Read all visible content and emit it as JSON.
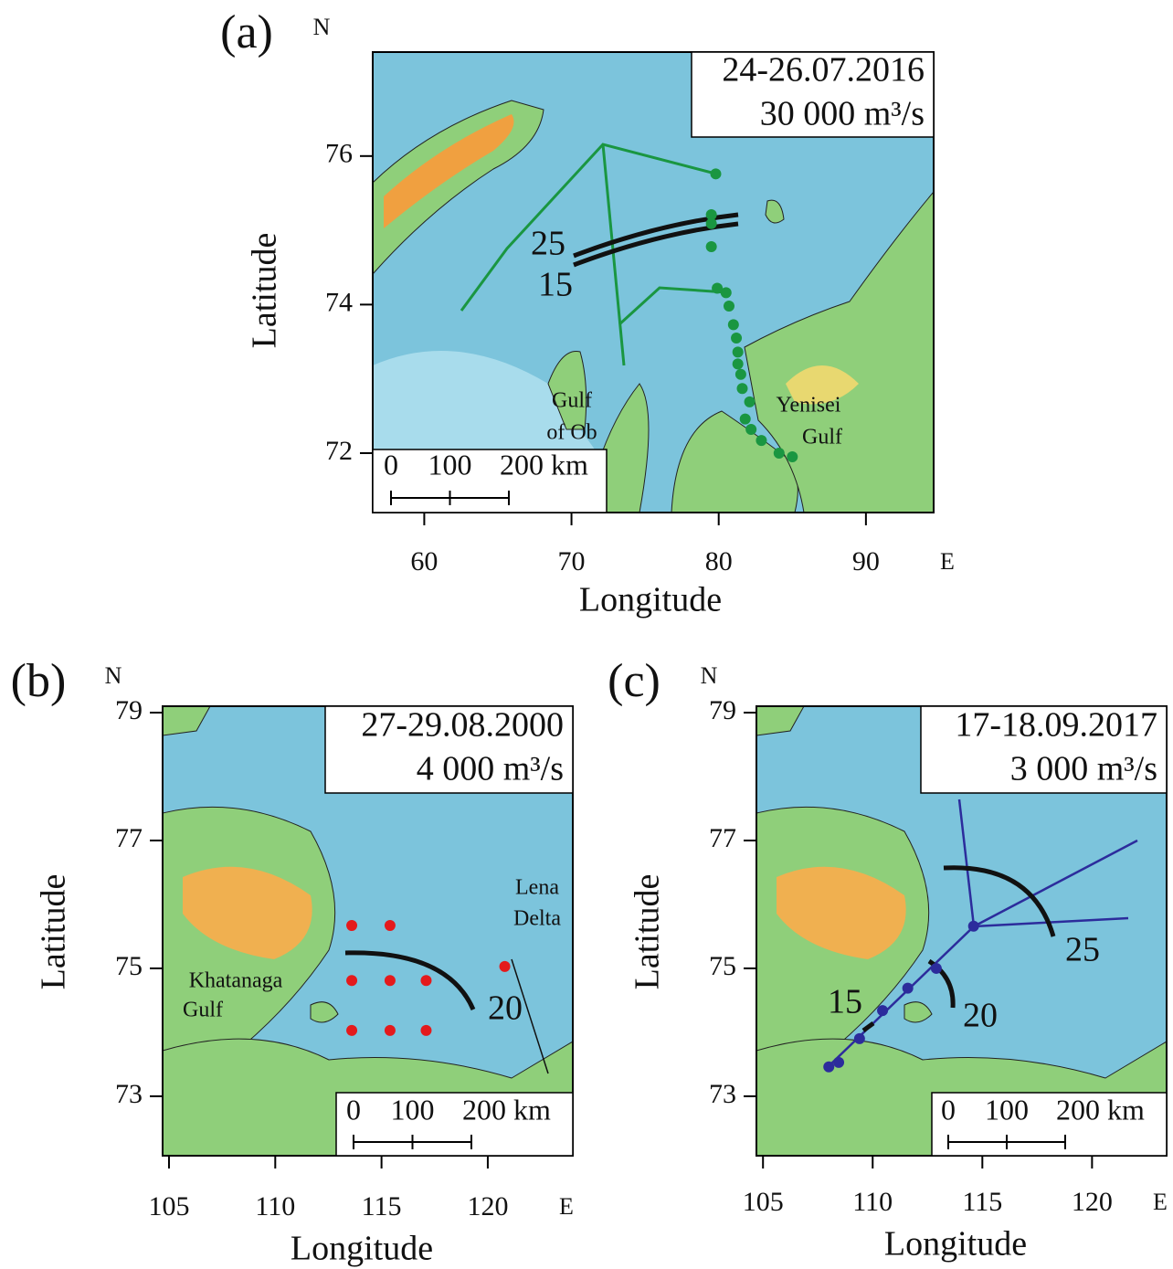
{
  "panels": [
    {
      "label": "(a)",
      "date": "24-26.07.2016",
      "discharge": "30 000 m³/s",
      "north": "N",
      "east": "E",
      "xlabel": "Longitude",
      "ylabel": "Latitude",
      "xlim": [
        56.5,
        94.6
      ],
      "ylim": [
        71.2,
        77.4
      ],
      "xticks": [
        60,
        70,
        80,
        90
      ],
      "yticks": [
        72,
        74,
        76
      ],
      "scale_bar": [
        "0",
        "100",
        "200 km"
      ],
      "places": [
        [
          "Gulf",
          "of Ob"
        ],
        [
          "Yenisei",
          "Gulf"
        ]
      ],
      "isolines": [
        "25",
        "15"
      ],
      "stations": {
        "color": "#1a9641",
        "lon": [
          79.8,
          79.5,
          79.5,
          79.5,
          79.9,
          80.5,
          80.7,
          81.0,
          81.2,
          81.3,
          81.3,
          81.5,
          81.6,
          82.1,
          81.8,
          82.2,
          82.9,
          84.1,
          85.0
        ],
        "lat": [
          75.76,
          75.21,
          75.09,
          74.78,
          74.22,
          74.16,
          73.98,
          73.73,
          73.55,
          73.36,
          73.2,
          73.06,
          72.87,
          72.69,
          72.46,
          72.32,
          72.17,
          72.0,
          71.95
        ]
      }
    },
    {
      "label": "(b)",
      "date": "27-29.08.2000",
      "discharge": "4 000 m³/s",
      "north": "N",
      "east": "E",
      "xlabel": "Longitude",
      "ylabel": "Latitude",
      "xlim": [
        104.7,
        124.0
      ],
      "ylim": [
        72.07,
        79.1
      ],
      "xticks": [
        105,
        110,
        115,
        120
      ],
      "yticks": [
        73,
        75,
        77,
        79
      ],
      "scale_bar": [
        "0",
        "100",
        "200 km"
      ],
      "places": [
        [
          "Khatanaga",
          "Gulf"
        ],
        [
          "Lena",
          "Delta"
        ]
      ],
      "isolines": [
        "20"
      ],
      "stations": {
        "color": "#e41a1c",
        "lon": [
          113.6,
          115.4,
          113.6,
          115.4,
          117.1,
          120.8,
          113.6,
          115.4,
          117.1
        ],
        "lat": [
          75.67,
          75.67,
          74.81,
          74.81,
          74.81,
          75.03,
          74.03,
          74.03,
          74.03
        ]
      }
    },
    {
      "label": "(c)",
      "date": "17-18.09.2017",
      "discharge": "3 000 m³/s",
      "north": "N",
      "east": "E",
      "xlabel": "Longitude",
      "ylabel": "Latitude",
      "xlim": [
        104.7,
        123.4
      ],
      "ylim": [
        72.07,
        79.1
      ],
      "xticks": [
        105,
        110,
        115,
        120
      ],
      "yticks": [
        73,
        75,
        77,
        79
      ],
      "scale_bar": [
        "0",
        "100",
        "200 km"
      ],
      "places": [],
      "isolines": [
        "25",
        "20",
        "15"
      ],
      "stations": {
        "color": "#2c2c9c",
        "lon": [
          108.0,
          108.45,
          109.4,
          110.45,
          111.6,
          112.9,
          114.6
        ],
        "lat": [
          73.46,
          73.53,
          73.9,
          74.34,
          74.69,
          75.0,
          75.66
        ]
      }
    }
  ]
}
